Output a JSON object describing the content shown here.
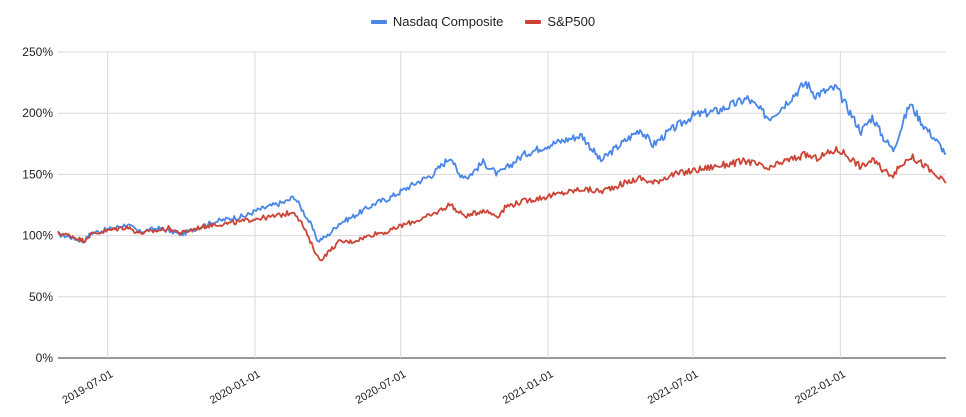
{
  "colors": {
    "nasdaq": "#4a86e8",
    "sp500": "#cc4436",
    "grid": "#d9d9d9",
    "axis": "#333333"
  },
  "chart_data": {
    "type": "line",
    "title": "",
    "xlabel": "",
    "ylabel": "",
    "legend_position": "top",
    "grid": true,
    "xlim": [
      "2019-04-30",
      "2022-05-13"
    ],
    "ylim": [
      0,
      250
    ],
    "y_ticks": [
      0,
      50,
      100,
      150,
      200,
      250
    ],
    "y_tick_labels": [
      "0%",
      "50%",
      "100%",
      "150%",
      "200%",
      "250%"
    ],
    "x_ticks": [
      "2019-07-01",
      "2020-01-01",
      "2020-07-01",
      "2021-01-01",
      "2021-07-01",
      "2022-01-01"
    ],
    "x_tick_labels": [
      "2019-07-01",
      "2020-01-01",
      "2020-07-01",
      "2021-01-01",
      "2021-07-01",
      "2022-01-01"
    ],
    "series": [
      {
        "name": "Nasdaq Composite",
        "color": "#4a86e8",
        "points": [
          [
            "2019-04-30",
            101
          ],
          [
            "2019-05-15",
            99
          ],
          [
            "2019-06-01",
            95
          ],
          [
            "2019-06-10",
            102
          ],
          [
            "2019-07-01",
            105
          ],
          [
            "2019-07-25",
            109
          ],
          [
            "2019-08-10",
            103
          ],
          [
            "2019-09-01",
            106
          ],
          [
            "2019-09-15",
            104
          ],
          [
            "2019-10-01",
            101
          ],
          [
            "2019-10-20",
            106
          ],
          [
            "2019-11-10",
            111
          ],
          [
            "2019-12-01",
            114
          ],
          [
            "2019-12-20",
            116
          ],
          [
            "2020-01-01",
            120
          ],
          [
            "2020-01-20",
            124
          ],
          [
            "2020-02-10",
            128
          ],
          [
            "2020-02-19",
            132
          ],
          [
            "2020-03-01",
            120
          ],
          [
            "2020-03-10",
            110
          ],
          [
            "2020-03-20",
            95
          ],
          [
            "2020-03-23",
            97
          ],
          [
            "2020-04-01",
            100
          ],
          [
            "2020-04-15",
            110
          ],
          [
            "2020-05-01",
            115
          ],
          [
            "2020-06-01",
            127
          ],
          [
            "2020-06-15",
            130
          ],
          [
            "2020-07-01",
            136
          ],
          [
            "2020-07-20",
            143
          ],
          [
            "2020-08-10",
            150
          ],
          [
            "2020-09-02",
            165
          ],
          [
            "2020-09-10",
            151
          ],
          [
            "2020-09-23",
            148
          ],
          [
            "2020-10-12",
            160
          ],
          [
            "2020-10-30",
            150
          ],
          [
            "2020-11-10",
            155
          ],
          [
            "2020-12-01",
            166
          ],
          [
            "2021-01-01",
            174
          ],
          [
            "2021-02-12",
            182
          ],
          [
            "2021-03-08",
            161
          ],
          [
            "2021-03-20",
            168
          ],
          [
            "2021-04-26",
            187
          ],
          [
            "2021-05-12",
            174
          ],
          [
            "2021-06-01",
            185
          ],
          [
            "2021-07-01",
            198
          ],
          [
            "2021-08-01",
            202
          ],
          [
            "2021-09-07",
            212
          ],
          [
            "2021-10-04",
            196
          ],
          [
            "2021-10-20",
            205
          ],
          [
            "2021-11-19",
            225
          ],
          [
            "2021-12-01",
            215
          ],
          [
            "2021-12-27",
            221
          ],
          [
            "2022-01-05",
            210
          ],
          [
            "2022-01-27",
            185
          ],
          [
            "2022-02-10",
            197
          ],
          [
            "2022-02-24",
            180
          ],
          [
            "2022-03-08",
            170
          ],
          [
            "2022-03-29",
            208
          ],
          [
            "2022-04-15",
            190
          ],
          [
            "2022-04-28",
            180
          ],
          [
            "2022-05-13",
            167
          ]
        ]
      },
      {
        "name": "S&P500",
        "color": "#cc4436",
        "points": [
          [
            "2019-04-30",
            102
          ],
          [
            "2019-05-15",
            100
          ],
          [
            "2019-06-01",
            96
          ],
          [
            "2019-06-10",
            101
          ],
          [
            "2019-07-01",
            104
          ],
          [
            "2019-07-25",
            107
          ],
          [
            "2019-08-10",
            102
          ],
          [
            "2019-09-01",
            104
          ],
          [
            "2019-09-15",
            106
          ],
          [
            "2019-10-01",
            102
          ],
          [
            "2019-10-20",
            106
          ],
          [
            "2019-11-10",
            109
          ],
          [
            "2019-12-01",
            110
          ],
          [
            "2019-12-20",
            112
          ],
          [
            "2020-01-01",
            114
          ],
          [
            "2020-01-20",
            115
          ],
          [
            "2020-02-10",
            118
          ],
          [
            "2020-02-19",
            120
          ],
          [
            "2020-03-01",
            108
          ],
          [
            "2020-03-10",
            95
          ],
          [
            "2020-03-20",
            82
          ],
          [
            "2020-03-23",
            80
          ],
          [
            "2020-04-01",
            86
          ],
          [
            "2020-04-15",
            95
          ],
          [
            "2020-05-01",
            95
          ],
          [
            "2020-06-01",
            102
          ],
          [
            "2020-06-15",
            103
          ],
          [
            "2020-07-01",
            108
          ],
          [
            "2020-07-20",
            112
          ],
          [
            "2020-08-10",
            117
          ],
          [
            "2020-09-02",
            126
          ],
          [
            "2020-09-10",
            119
          ],
          [
            "2020-09-23",
            116
          ],
          [
            "2020-10-12",
            121
          ],
          [
            "2020-10-30",
            116
          ],
          [
            "2020-11-10",
            124
          ],
          [
            "2020-12-01",
            128
          ],
          [
            "2021-01-01",
            132
          ],
          [
            "2021-02-12",
            138
          ],
          [
            "2021-03-08",
            136
          ],
          [
            "2021-03-20",
            139
          ],
          [
            "2021-04-26",
            147
          ],
          [
            "2021-05-12",
            143
          ],
          [
            "2021-06-01",
            149
          ],
          [
            "2021-07-01",
            153
          ],
          [
            "2021-08-01",
            157
          ],
          [
            "2021-09-07",
            161
          ],
          [
            "2021-10-04",
            154
          ],
          [
            "2021-10-20",
            160
          ],
          [
            "2021-11-19",
            166
          ],
          [
            "2021-12-01",
            163
          ],
          [
            "2021-12-27",
            170
          ],
          [
            "2022-01-05",
            168
          ],
          [
            "2022-01-27",
            156
          ],
          [
            "2022-02-10",
            162
          ],
          [
            "2022-02-24",
            153
          ],
          [
            "2022-03-08",
            150
          ],
          [
            "2022-03-29",
            165
          ],
          [
            "2022-04-15",
            158
          ],
          [
            "2022-04-28",
            150
          ],
          [
            "2022-05-13",
            143
          ]
        ]
      }
    ]
  }
}
